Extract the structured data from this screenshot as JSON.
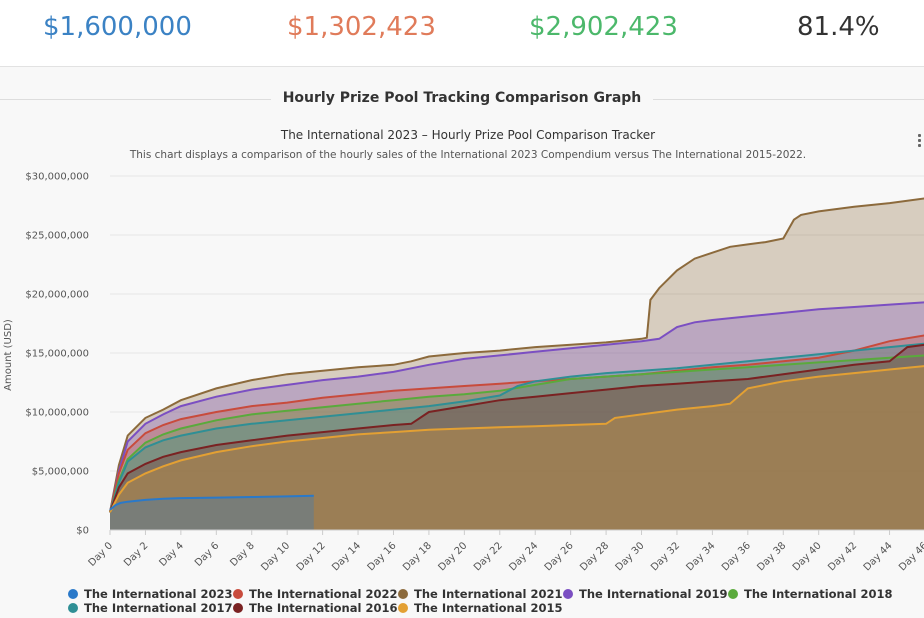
{
  "stats": [
    {
      "value": "$1,600,000",
      "color": "#3b82c4"
    },
    {
      "value": "$1,302,423",
      "color": "#e07b5a"
    },
    {
      "value": "$2,902,423",
      "color": "#4cb86b"
    },
    {
      "value": "81.4%",
      "color": "#333333"
    }
  ],
  "section_title": "Hourly Prize Pool Tracking Comparison Graph",
  "menu_icon": "menu-icon",
  "chart_data": {
    "type": "area",
    "title": "The International 2023 – Hourly Prize Pool Comparison Tracker",
    "subtitle": "This chart displays a comparison of the hourly sales of the International 2023 Compendium versus The International 2015-2022.",
    "ylabel": "Amount (USD)",
    "xlabel": "",
    "ylim": [
      0,
      30000000
    ],
    "xlim": [
      0,
      46
    ],
    "yticks": [
      0,
      5000000,
      10000000,
      15000000,
      20000000,
      25000000,
      30000000
    ],
    "ytick_labels": [
      "$0",
      "$5,000,000",
      "$10,000,000",
      "$15,000,000",
      "$20,000,000",
      "$25,000,000",
      "$30,000,000"
    ],
    "xticks": [
      0,
      2,
      4,
      6,
      8,
      10,
      12,
      14,
      16,
      18,
      20,
      22,
      24,
      26,
      28,
      30,
      32,
      34,
      36,
      38,
      40,
      42,
      44,
      46
    ],
    "xtick_labels": [
      "Day 0",
      "Day 2",
      "Day 4",
      "Day 6",
      "Day 8",
      "Day 10",
      "Day 12",
      "Day 14",
      "Day 16",
      "Day 18",
      "Day 20",
      "Day 22",
      "Day 24",
      "Day 26",
      "Day 28",
      "Day 30",
      "Day 32",
      "Day 34",
      "Day 36",
      "Day 38",
      "Day 40",
      "Day 42",
      "Day 44",
      "Day 46"
    ],
    "grid": true,
    "legend_position": "bottom",
    "series": [
      {
        "name": "The International 2021",
        "color": "#8c6a3c",
        "x": [
          0,
          0.5,
          1,
          2,
          3,
          4,
          6,
          8,
          10,
          12,
          14,
          16,
          17,
          18,
          20,
          22,
          24,
          26,
          28,
          30,
          30.3,
          30.5,
          31,
          32,
          33,
          34,
          35,
          36,
          37,
          38,
          38.3,
          38.6,
          39,
          40,
          42,
          44,
          46
        ],
        "y": [
          1500000,
          5500000,
          8000000,
          9500000,
          10200000,
          11000000,
          12000000,
          12700000,
          13200000,
          13500000,
          13800000,
          14000000,
          14300000,
          14700000,
          15000000,
          15200000,
          15500000,
          15700000,
          15900000,
          16200000,
          16300000,
          19500000,
          20500000,
          22000000,
          23000000,
          23500000,
          24000000,
          24200000,
          24400000,
          24700000,
          25500000,
          26300000,
          26700000,
          27000000,
          27400000,
          27700000,
          28100000
        ]
      },
      {
        "name": "The International 2019",
        "color": "#7b4fc2",
        "x": [
          0,
          0.5,
          1,
          2,
          3,
          4,
          6,
          8,
          10,
          12,
          14,
          16,
          18,
          20,
          22,
          24,
          26,
          28,
          30,
          31,
          32,
          33,
          34,
          36,
          38,
          40,
          42,
          44,
          46
        ],
        "y": [
          1500000,
          5000000,
          7500000,
          9000000,
          9800000,
          10500000,
          11300000,
          11900000,
          12300000,
          12700000,
          13000000,
          13400000,
          14000000,
          14500000,
          14800000,
          15100000,
          15400000,
          15700000,
          16000000,
          16200000,
          17200000,
          17600000,
          17800000,
          18100000,
          18400000,
          18700000,
          18900000,
          19100000,
          19300000
        ]
      },
      {
        "name": "The International 2022",
        "color": "#c84b3c",
        "x": [
          0,
          0.5,
          1,
          2,
          3,
          4,
          6,
          8,
          10,
          12,
          14,
          16,
          18,
          20,
          22,
          24,
          26,
          28,
          30,
          32,
          34,
          36,
          38,
          40,
          42,
          44,
          46
        ],
        "y": [
          1500000,
          4800000,
          6800000,
          8200000,
          8900000,
          9400000,
          10000000,
          10500000,
          10800000,
          11200000,
          11500000,
          11800000,
          12000000,
          12200000,
          12400000,
          12600000,
          12800000,
          13000000,
          13200000,
          13500000,
          13800000,
          14000000,
          14300000,
          14600000,
          15200000,
          16000000,
          16500000
        ]
      },
      {
        "name": "The International 2018",
        "color": "#5aaa3c",
        "x": [
          0,
          0.5,
          1,
          2,
          3,
          4,
          6,
          8,
          10,
          12,
          14,
          16,
          18,
          20,
          22,
          24,
          26,
          28,
          30,
          32,
          34,
          36,
          38,
          40,
          42,
          44,
          46
        ],
        "y": [
          1500000,
          4200000,
          6000000,
          7400000,
          8100000,
          8600000,
          9300000,
          9800000,
          10100000,
          10400000,
          10700000,
          11000000,
          11300000,
          11500000,
          11800000,
          12300000,
          12800000,
          13000000,
          13200000,
          13400000,
          13600000,
          13800000,
          14000000,
          14200000,
          14400000,
          14600000,
          14800000
        ]
      },
      {
        "name": "The International 2017",
        "color": "#2f8f95",
        "x": [
          0,
          0.5,
          1,
          2,
          3,
          4,
          6,
          8,
          10,
          12,
          14,
          16,
          18,
          20,
          22,
          23,
          24,
          26,
          28,
          30,
          32,
          34,
          36,
          38,
          40,
          42,
          44,
          46
        ],
        "y": [
          1500000,
          4000000,
          5800000,
          7000000,
          7600000,
          8000000,
          8600000,
          9000000,
          9300000,
          9600000,
          9900000,
          10200000,
          10500000,
          10900000,
          11400000,
          12200000,
          12600000,
          13000000,
          13300000,
          13500000,
          13700000,
          14000000,
          14300000,
          14600000,
          14900000,
          15200000,
          15500000,
          15800000
        ]
      },
      {
        "name": "The International 2016",
        "color": "#7a2222",
        "x": [
          0,
          0.5,
          1,
          2,
          3,
          4,
          6,
          8,
          10,
          12,
          14,
          16,
          17,
          18,
          20,
          22,
          24,
          26,
          28,
          30,
          32,
          34,
          36,
          38,
          40,
          42,
          44,
          45,
          46
        ],
        "y": [
          1500000,
          3600000,
          4800000,
          5600000,
          6200000,
          6600000,
          7200000,
          7600000,
          8000000,
          8300000,
          8600000,
          8900000,
          9000000,
          10000000,
          10500000,
          11000000,
          11300000,
          11600000,
          11900000,
          12200000,
          12400000,
          12600000,
          12800000,
          13200000,
          13600000,
          14000000,
          14300000,
          15500000,
          15700000
        ]
      },
      {
        "name": "The International 2015",
        "color": "#e3a033",
        "x": [
          0,
          0.5,
          1,
          2,
          3,
          4,
          6,
          8,
          10,
          12,
          14,
          16,
          18,
          20,
          22,
          24,
          26,
          28,
          28.5,
          30,
          32,
          34,
          35,
          36,
          38,
          40,
          42,
          44,
          46
        ],
        "y": [
          1500000,
          3000000,
          4000000,
          4800000,
          5400000,
          5900000,
          6600000,
          7100000,
          7500000,
          7800000,
          8100000,
          8300000,
          8500000,
          8600000,
          8700000,
          8800000,
          8900000,
          9000000,
          9500000,
          9800000,
          10200000,
          10500000,
          10700000,
          12000000,
          12600000,
          13000000,
          13300000,
          13600000,
          13900000
        ]
      },
      {
        "name": "The International 2023",
        "color": "#2a79c9",
        "x": [
          0,
          0.3,
          0.6,
          1,
          2,
          3,
          4,
          6,
          8,
          10,
          11.5
        ],
        "y": [
          1700000,
          2100000,
          2300000,
          2400000,
          2550000,
          2650000,
          2700000,
          2750000,
          2800000,
          2850000,
          2900000
        ]
      }
    ]
  }
}
